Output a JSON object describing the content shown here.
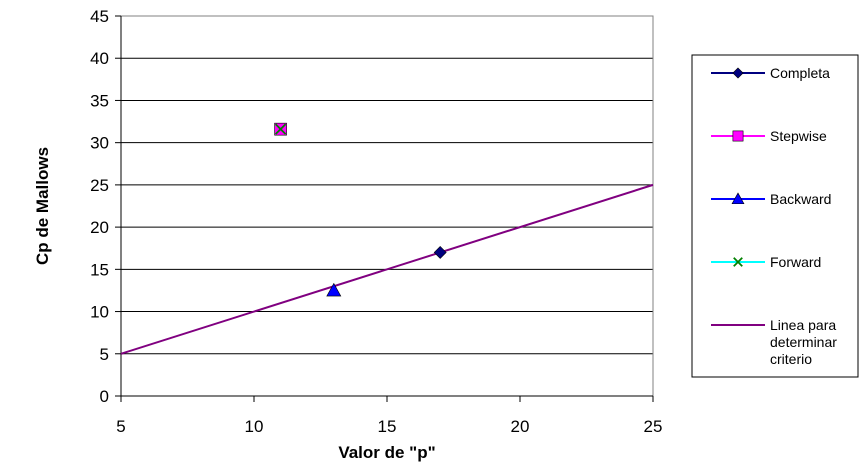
{
  "chart_data": {
    "type": "scatter",
    "title": "",
    "xlabel": "Valor de \"p\"",
    "ylabel": "Cp de Mallows",
    "xlim": [
      5,
      25
    ],
    "ylim": [
      0,
      45
    ],
    "xticks": [
      5,
      10,
      15,
      20,
      25
    ],
    "yticks": [
      0,
      5,
      10,
      15,
      20,
      25,
      30,
      35,
      40,
      45
    ],
    "grid": "horizontal",
    "legend_position": "right",
    "series": [
      {
        "name": "Completa",
        "marker": "diamond",
        "color": "#000080",
        "points": [
          {
            "x": 17,
            "y": 17
          }
        ]
      },
      {
        "name": "Stepwise",
        "marker": "square",
        "color": "#FF00FF",
        "points": [
          {
            "x": 11,
            "y": 31.6
          }
        ]
      },
      {
        "name": "Backward",
        "marker": "triangle",
        "color": "#0000FF",
        "points": [
          {
            "x": 13,
            "y": 12.5
          }
        ]
      },
      {
        "name": "Forward",
        "marker": "x",
        "color": "#008000",
        "line_color": "#00FFFF",
        "points": [
          {
            "x": 11,
            "y": 31.6
          }
        ]
      },
      {
        "name": "Linea para determinar criterio",
        "name_lines": [
          "Linea para",
          "determinar",
          "criterio"
        ],
        "marker": "none",
        "color": "#800080",
        "points": [
          {
            "x": 5,
            "y": 5
          },
          {
            "x": 25,
            "y": 25
          }
        ]
      }
    ]
  }
}
